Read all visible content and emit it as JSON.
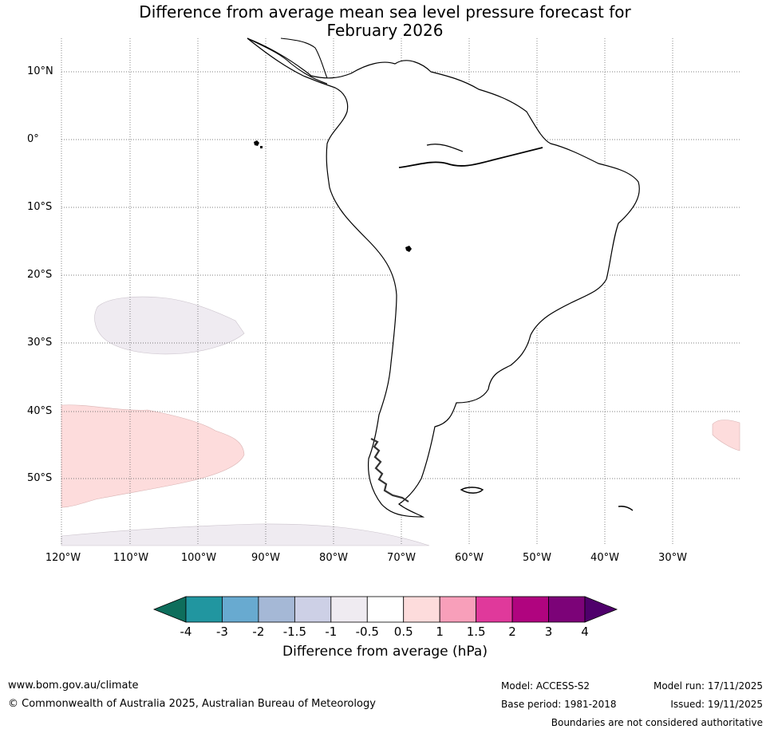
{
  "title_line1": "Difference from average mean sea level pressure forecast for",
  "title_line2": "February 2026",
  "latitudes": [
    "10°N",
    "0°",
    "10°S",
    "20°S",
    "30°S",
    "40°S",
    "50°S"
  ],
  "longitudes": [
    "120°W",
    "110°W",
    "100°W",
    "90°W",
    "80°W",
    "70°W",
    "60°W",
    "50°W",
    "40°W",
    "30°W"
  ],
  "colorbar": {
    "labels": [
      "-4",
      "-3",
      "-2",
      "-1.5",
      "-1",
      "-0.5",
      "0.5",
      "1",
      "1.5",
      "2",
      "3",
      "4"
    ],
    "colors": [
      "#0e6e5c",
      "#2196a0",
      "#68aad0",
      "#a5b8d6",
      "#cdd0e6",
      "#efebf1",
      "#ffffff",
      "#fddcdc",
      "#f89fba",
      "#e0399b",
      "#b0047f",
      "#7c0378",
      "#4f006b"
    ],
    "title": "Difference from average (hPa)"
  },
  "footer": {
    "website": "www.bom.gov.au/climate",
    "copyright": "© Commonwealth of Australia 2025, Australian Bureau of Meteorology",
    "model": "Model: ACCESS-S2",
    "base_period": "Base period: 1981-2018",
    "model_run": "Model run: 17/11/2025",
    "issued": "Issued: 19/11/2025",
    "disclaimer": "Boundaries are not considered authoritative"
  }
}
